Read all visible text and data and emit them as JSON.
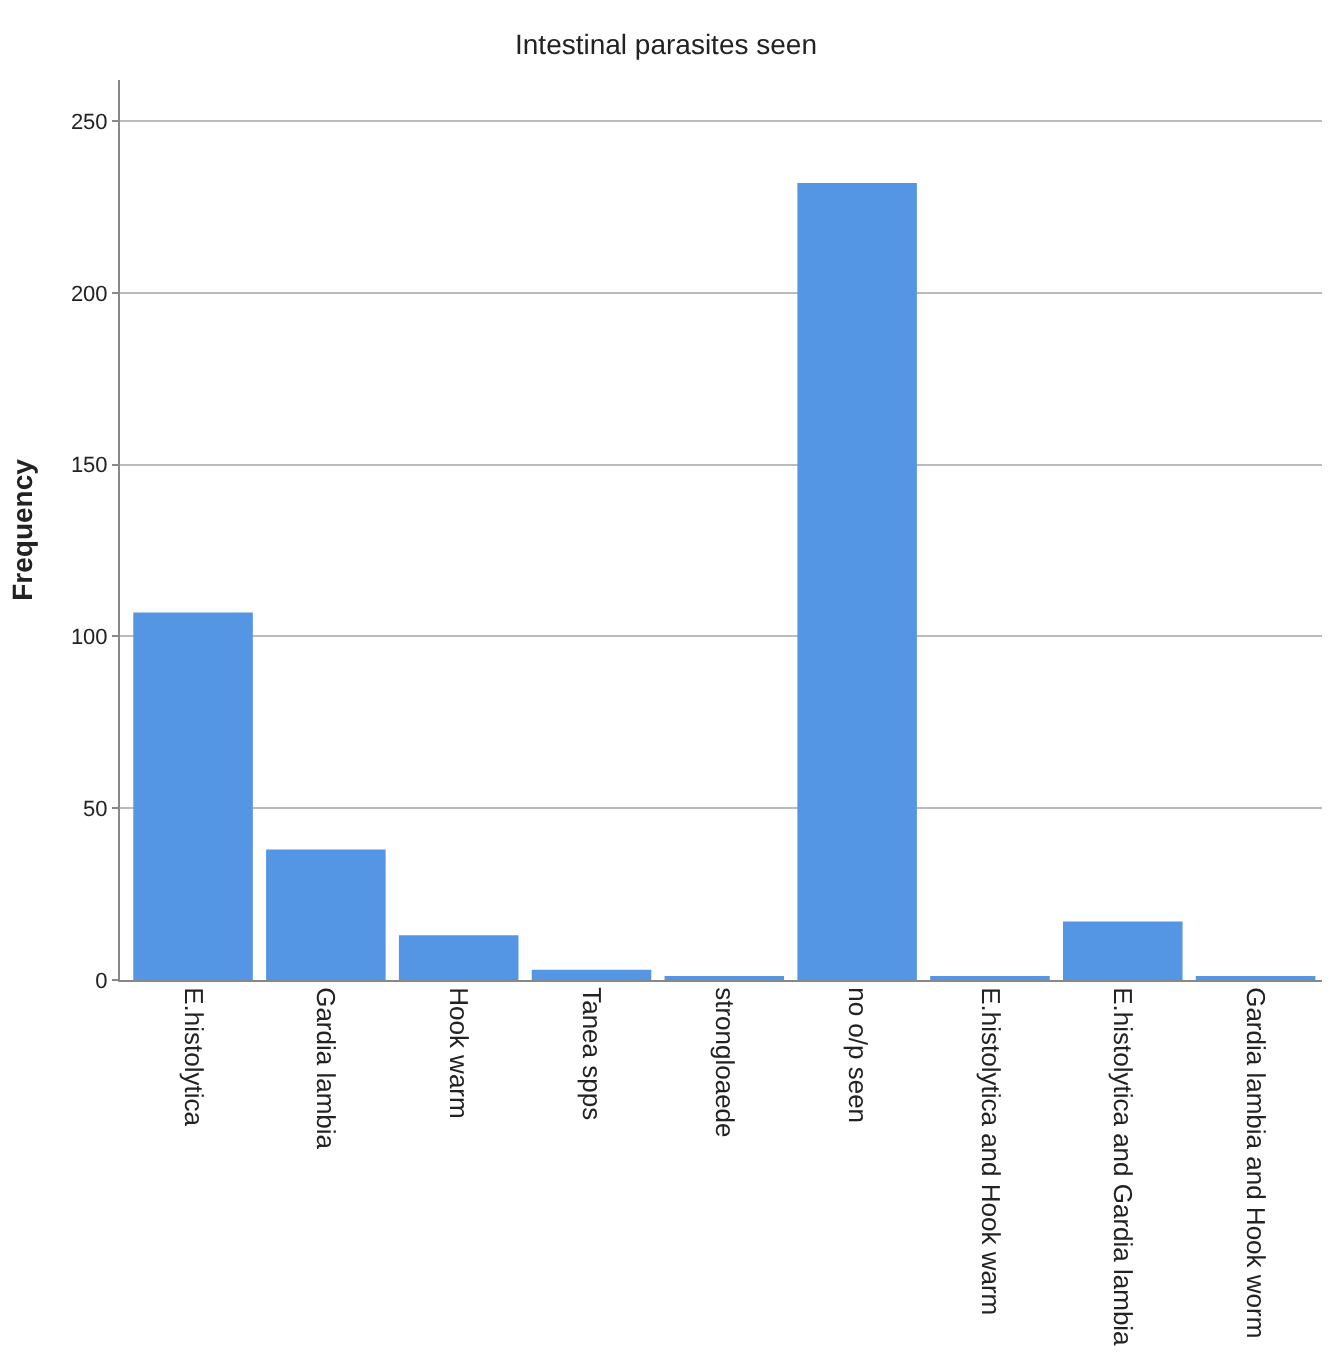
{
  "chart_data": {
    "type": "bar",
    "title": "Intestinal parasites seen",
    "ylabel": "Frequency",
    "categories": [
      "E.histolytica",
      "Gardia lambia",
      "Hook warm",
      "Tanea spps",
      "strongloaede",
      "no o/p seen",
      "E.histolytica and Hook warm",
      "E.histolytica and Gardia lambia",
      "Gardia lambia and Hook worm"
    ],
    "values": [
      107,
      38,
      13,
      3,
      1,
      232,
      1,
      17,
      1
    ],
    "color": "#5596e4",
    "ylim": [
      0,
      262
    ],
    "yticks": [
      0,
      50,
      100,
      150,
      200,
      250
    ],
    "grid": "y"
  }
}
